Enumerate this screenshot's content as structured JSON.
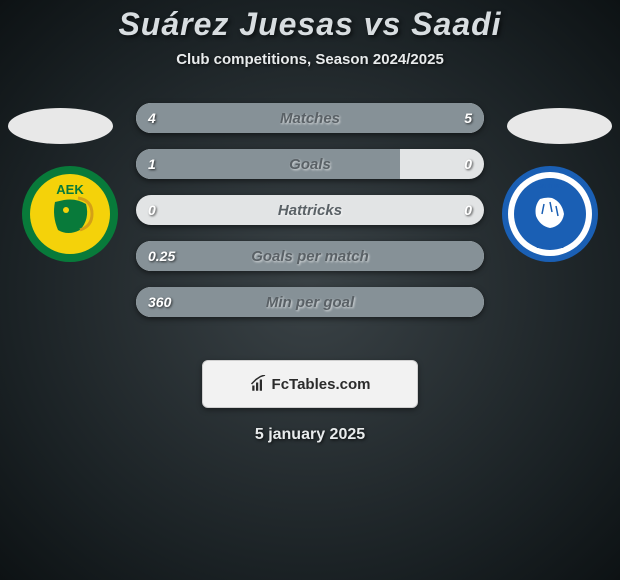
{
  "header": {
    "title": "Suárez Juesas vs Saadi",
    "subtitle": "Club competitions, Season 2024/2025"
  },
  "crests": {
    "left": {
      "ring_color": "#087a3a",
      "fill_color": "#f4d20a",
      "text": "AEK"
    },
    "right": {
      "ring_color": "#1a5fb4",
      "fill_color": "#ffffff"
    }
  },
  "stats": [
    {
      "label": "Matches",
      "left_val": "4",
      "right_val": "5",
      "left_pct": 44,
      "right_pct": 56
    },
    {
      "label": "Goals",
      "left_val": "1",
      "right_val": "0",
      "left_pct": 76,
      "right_pct": 0
    },
    {
      "label": "Hattricks",
      "left_val": "0",
      "right_val": "0",
      "left_pct": 0,
      "right_pct": 0
    },
    {
      "label": "Goals per match",
      "left_val": "0.25",
      "right_val": "",
      "left_pct": 100,
      "right_pct": 0
    },
    {
      "label": "Min per goal",
      "left_val": "360",
      "right_val": "",
      "left_pct": 100,
      "right_pct": 0
    }
  ],
  "bar_colors": {
    "bg": "#e2e4e5",
    "fill": "#869197",
    "label_color": "#5a6166",
    "value_color": "#ffffff"
  },
  "footer": {
    "brand": "FcTables.com",
    "date": "5 january 2025"
  }
}
